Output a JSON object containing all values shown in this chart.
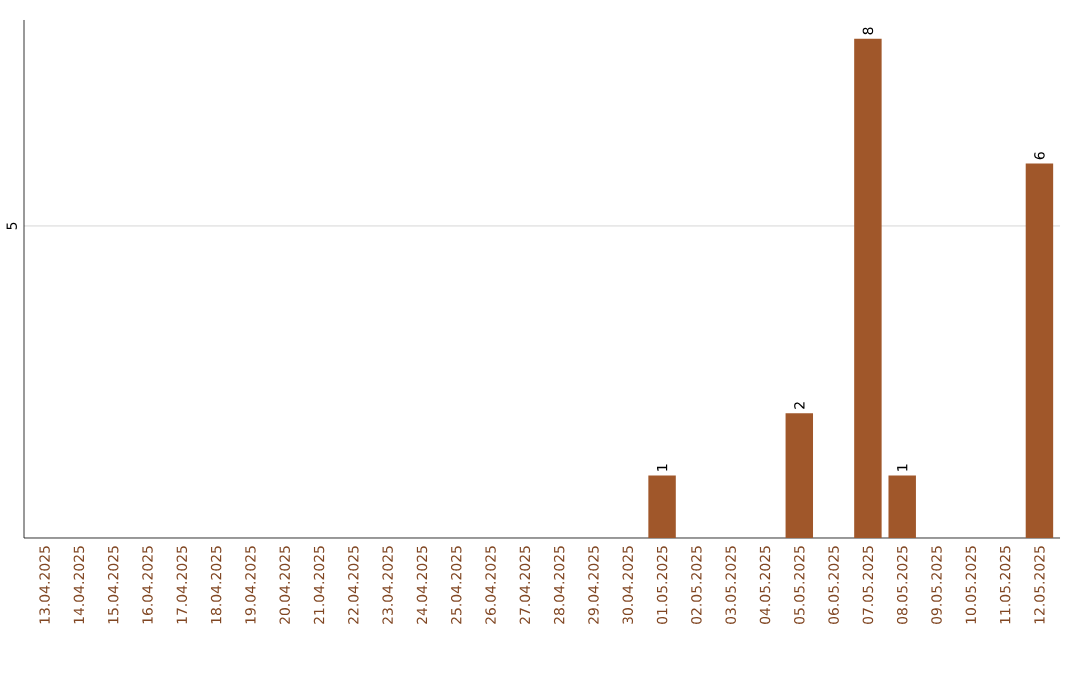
{
  "chart_data": {
    "type": "bar",
    "categories": [
      "13.04.2025",
      "14.04.2025",
      "15.04.2025",
      "16.04.2025",
      "17.04.2025",
      "18.04.2025",
      "19.04.2025",
      "20.04.2025",
      "21.04.2025",
      "22.04.2025",
      "23.04.2025",
      "24.04.2025",
      "25.04.2025",
      "26.04.2025",
      "27.04.2025",
      "28.04.2025",
      "29.04.2025",
      "30.04.2025",
      "01.05.2025",
      "02.05.2025",
      "03.05.2025",
      "04.05.2025",
      "05.05.2025",
      "06.05.2025",
      "07.05.2025",
      "08.05.2025",
      "09.05.2025",
      "10.05.2025",
      "11.05.2025",
      "12.05.2025"
    ],
    "values": [
      null,
      null,
      null,
      null,
      null,
      null,
      null,
      null,
      null,
      null,
      null,
      null,
      null,
      null,
      null,
      null,
      null,
      null,
      1,
      null,
      null,
      null,
      2,
      null,
      8,
      1,
      null,
      null,
      null,
      6
    ],
    "value_labels": [
      null,
      null,
      null,
      null,
      null,
      null,
      null,
      null,
      null,
      null,
      null,
      null,
      null,
      null,
      null,
      null,
      null,
      null,
      "1",
      null,
      null,
      null,
      "2",
      null,
      "8",
      "1",
      null,
      null,
      null,
      "6"
    ],
    "color": "#a0572a",
    "ylim": [
      0,
      8.3
    ],
    "yticks": [
      5
    ],
    "grid": "y"
  }
}
